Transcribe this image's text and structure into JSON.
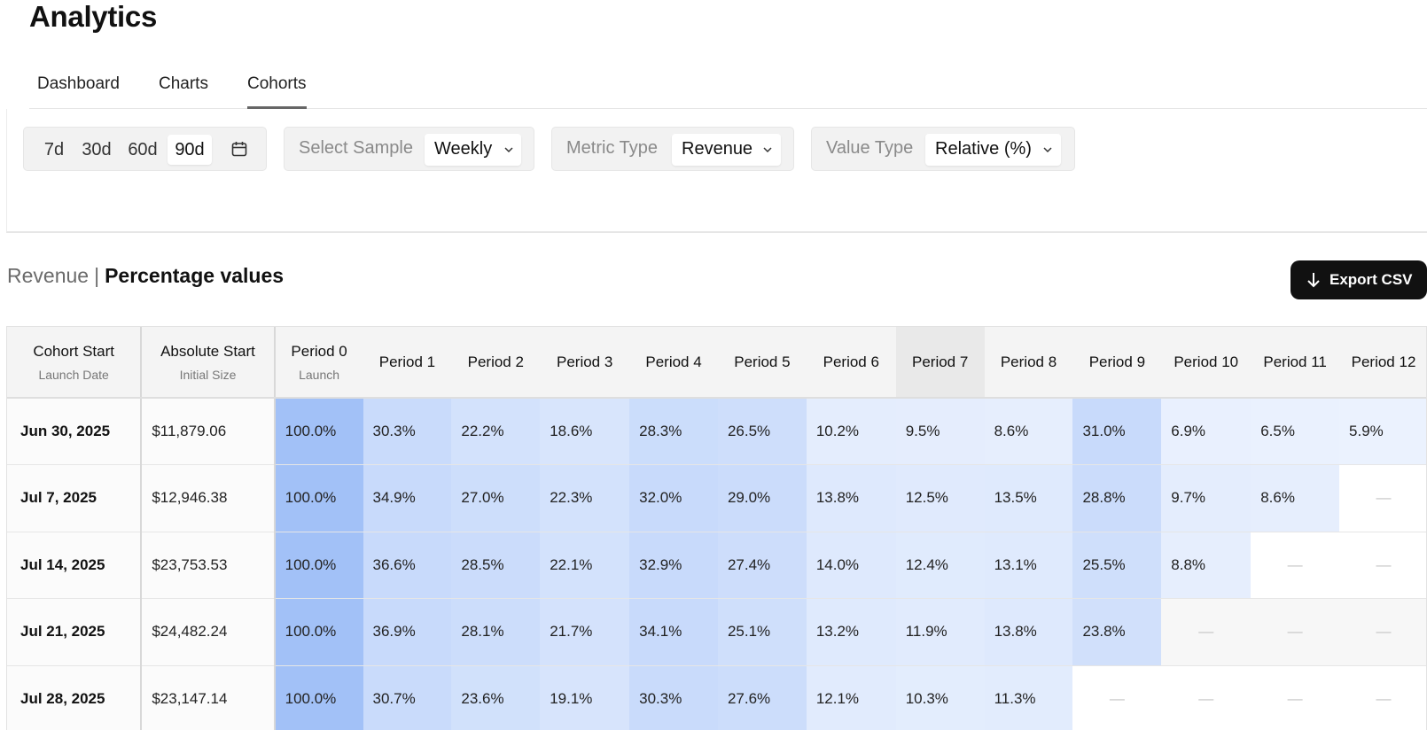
{
  "page": {
    "title": "Analytics"
  },
  "tabs": [
    {
      "label": "Dashboard",
      "active": false
    },
    {
      "label": "Charts",
      "active": false
    },
    {
      "label": "Cohorts",
      "active": true
    }
  ],
  "filters": {
    "range_options": [
      "7d",
      "30d",
      "60d",
      "90d"
    ],
    "range_selected": "90d",
    "calendar_icon": "calendar-icon",
    "sample": {
      "label": "Select Sample",
      "value": "Weekly"
    },
    "metric": {
      "label": "Metric Type",
      "value": "Revenue"
    },
    "value_type": {
      "label": "Value Type",
      "value": "Relative (%)"
    }
  },
  "section": {
    "metric": "Revenue",
    "separator": "|",
    "mode": "Percentage values"
  },
  "export": {
    "label": "Export CSV",
    "icon": "arrow-down-icon"
  },
  "table": {
    "headers": [
      {
        "title": "Cohort Start",
        "sub": "Launch Date"
      },
      {
        "title": "Absolute Start",
        "sub": "Initial Size"
      },
      {
        "title": "Period 0",
        "sub": "Launch"
      },
      {
        "title": "Period 1",
        "sub": ""
      },
      {
        "title": "Period 2",
        "sub": ""
      },
      {
        "title": "Period 3",
        "sub": ""
      },
      {
        "title": "Period 4",
        "sub": ""
      },
      {
        "title": "Period 5",
        "sub": ""
      },
      {
        "title": "Period 6",
        "sub": ""
      },
      {
        "title": "Period 7",
        "sub": ""
      },
      {
        "title": "Period 8",
        "sub": ""
      },
      {
        "title": "Period 9",
        "sub": ""
      },
      {
        "title": "Period 10",
        "sub": ""
      },
      {
        "title": "Period 11",
        "sub": ""
      },
      {
        "title": "Period 12",
        "sub": ""
      }
    ],
    "highlighted_period": "Period 7",
    "empty_marker": "—",
    "rows": [
      {
        "date": "Jun 30, 2025",
        "abs": "$11,879.06",
        "cells": [
          "100.0%",
          "30.3%",
          "22.2%",
          "18.6%",
          "28.3%",
          "26.5%",
          "10.2%",
          "9.5%",
          "8.6%",
          "31.0%",
          "6.9%",
          "6.5%",
          "5.9%"
        ]
      },
      {
        "date": "Jul 7, 2025",
        "abs": "$12,946.38",
        "cells": [
          "100.0%",
          "34.9%",
          "27.0%",
          "22.3%",
          "32.0%",
          "29.0%",
          "13.8%",
          "12.5%",
          "13.5%",
          "28.8%",
          "9.7%",
          "8.6%",
          null
        ]
      },
      {
        "date": "Jul 14, 2025",
        "abs": "$23,753.53",
        "cells": [
          "100.0%",
          "36.6%",
          "28.5%",
          "22.1%",
          "32.9%",
          "27.4%",
          "14.0%",
          "12.4%",
          "13.1%",
          "25.5%",
          "8.8%",
          null,
          null
        ]
      },
      {
        "date": "Jul 21, 2025",
        "abs": "$24,482.24",
        "cells": [
          "100.0%",
          "36.9%",
          "28.1%",
          "21.7%",
          "34.1%",
          "25.1%",
          "13.2%",
          "11.9%",
          "13.8%",
          "23.8%",
          null,
          null,
          null
        ]
      },
      {
        "date": "Jul 28, 2025",
        "abs": "$23,147.14",
        "cells": [
          "100.0%",
          "30.7%",
          "23.6%",
          "19.1%",
          "30.3%",
          "27.6%",
          "12.1%",
          "10.3%",
          "11.3%",
          null,
          null,
          null,
          null
        ]
      }
    ],
    "colors": {
      "cell_high": "#a2c1f7",
      "cell_low": "#edf3fe",
      "empty_in_range": "#f7f7f7",
      "empty_out_range": "#ffffff"
    }
  }
}
